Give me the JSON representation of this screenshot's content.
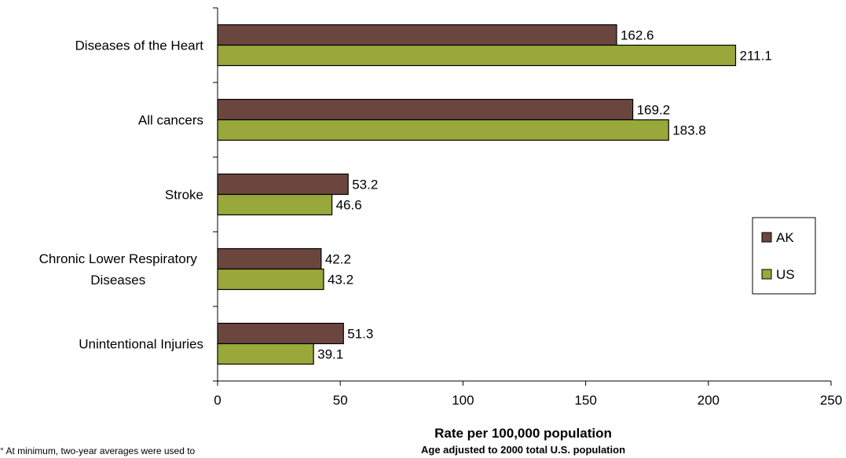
{
  "chart_data": {
    "type": "bar",
    "orientation": "horizontal",
    "categories": [
      "Diseases of the Heart",
      "All cancers",
      "Stroke",
      "Chronic Lower Respiratory Diseases",
      "Unintentional Injuries"
    ],
    "category_lines": [
      [
        "Diseases of the Heart"
      ],
      [
        "All cancers"
      ],
      [
        "Stroke"
      ],
      [
        "Chronic Lower Respiratory",
        "Diseases"
      ],
      [
        "Unintentional Injuries"
      ]
    ],
    "series": [
      {
        "name": "AK",
        "color": "#6b463f",
        "values": [
          162.6,
          169.2,
          53.2,
          42.2,
          51.3
        ]
      },
      {
        "name": "US",
        "color": "#99a83a",
        "values": [
          211.1,
          183.8,
          46.6,
          43.2,
          39.1
        ]
      }
    ],
    "xlim": [
      0,
      250
    ],
    "xticks": [
      0,
      50,
      100,
      150,
      200,
      250
    ],
    "xlabel": "Rate per 100,000 population",
    "xlabel_sub": "Age adjusted to 2000 total U.S. population",
    "legend_position": "right",
    "grid": false
  },
  "footnote": "° At minimum, two-year averages were used to"
}
